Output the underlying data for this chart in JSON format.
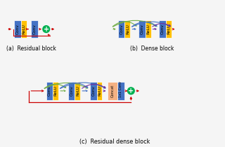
{
  "bg_color": "#f5f5f5",
  "blue_color": "#4472c4",
  "yellow_color": "#ffc000",
  "green_plus_color": "#00b050",
  "concat_color": "#f4b183",
  "red_arrow": "#cc0000",
  "green_arrow": "#70ad47",
  "blue_arrow": "#4472c4",
  "purple_arrow": "#7030a0",
  "label_a": "(a)  Residual block",
  "label_b": "(b)  Dense block",
  "label_c": "(c)  Residual dense block"
}
